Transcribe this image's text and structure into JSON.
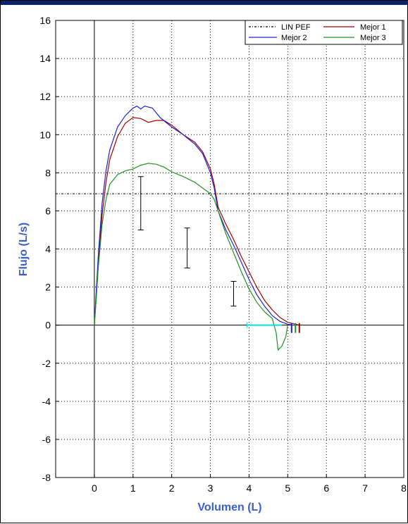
{
  "chart_data": {
    "type": "line",
    "xlabel": "Volumen (L)",
    "ylabel": "Flujo (L/s)",
    "xlim": [
      -1,
      8
    ],
    "ylim": [
      -8,
      16
    ],
    "x_ticks": [
      0,
      1,
      2,
      3,
      4,
      5,
      6,
      7,
      8
    ],
    "y_ticks": [
      -8,
      -6,
      -4,
      -2,
      0,
      2,
      4,
      6,
      8,
      10,
      12,
      14,
      16
    ],
    "grid": true,
    "legend_position": "top-right",
    "colors": {
      "lin_pef": "#000000",
      "mejor1": "#a00000",
      "mejor2": "#2020d0",
      "mejor3": "#209020",
      "cyan": "#00e0e0",
      "axis_label": "#3a5fcd"
    },
    "series": [
      {
        "name": "LIN PEF",
        "style": "dashdot",
        "color": "#000000",
        "points": [
          [
            -1,
            6.9
          ],
          [
            8,
            6.9
          ]
        ]
      },
      {
        "name": "Mejor 1",
        "color": "#a00000",
        "points": [
          [
            0,
            0
          ],
          [
            0.05,
            1.5
          ],
          [
            0.1,
            3.2
          ],
          [
            0.2,
            5.8
          ],
          [
            0.3,
            7.5
          ],
          [
            0.4,
            8.7
          ],
          [
            0.6,
            9.9
          ],
          [
            0.8,
            10.6
          ],
          [
            1.0,
            10.9
          ],
          [
            1.2,
            10.85
          ],
          [
            1.4,
            10.65
          ],
          [
            1.6,
            10.75
          ],
          [
            1.8,
            10.75
          ],
          [
            2.0,
            10.5
          ],
          [
            2.3,
            10.0
          ],
          [
            2.6,
            9.6
          ],
          [
            2.8,
            9.1
          ],
          [
            3.0,
            8.2
          ],
          [
            3.1,
            7.4
          ],
          [
            3.2,
            6.2
          ],
          [
            3.4,
            5.3
          ],
          [
            3.6,
            4.5
          ],
          [
            3.8,
            3.6
          ],
          [
            4.0,
            2.8
          ],
          [
            4.2,
            2.0
          ],
          [
            4.4,
            1.3
          ],
          [
            4.6,
            0.8
          ],
          [
            4.8,
            0.4
          ],
          [
            5.0,
            0.15
          ],
          [
            5.2,
            0.05
          ],
          [
            5.3,
            0
          ]
        ]
      },
      {
        "name": "Mejor 2",
        "color": "#2020d0",
        "points": [
          [
            0,
            0
          ],
          [
            0.05,
            1.8
          ],
          [
            0.1,
            3.6
          ],
          [
            0.2,
            6.4
          ],
          [
            0.3,
            8.1
          ],
          [
            0.4,
            9.2
          ],
          [
            0.6,
            10.4
          ],
          [
            0.8,
            11.0
          ],
          [
            1.0,
            11.4
          ],
          [
            1.1,
            11.5
          ],
          [
            1.2,
            11.35
          ],
          [
            1.3,
            11.5
          ],
          [
            1.5,
            11.4
          ],
          [
            1.7,
            10.9
          ],
          [
            2.0,
            10.4
          ],
          [
            2.3,
            10.0
          ],
          [
            2.6,
            9.5
          ],
          [
            2.8,
            9.0
          ],
          [
            3.0,
            8.0
          ],
          [
            3.1,
            7.2
          ],
          [
            3.2,
            6.0
          ],
          [
            3.4,
            5.0
          ],
          [
            3.6,
            4.2
          ],
          [
            3.8,
            3.3
          ],
          [
            4.0,
            2.4
          ],
          [
            4.2,
            1.6
          ],
          [
            4.4,
            1.0
          ],
          [
            4.6,
            0.5
          ],
          [
            4.8,
            0.2
          ],
          [
            5.0,
            0.05
          ],
          [
            5.15,
            0
          ]
        ]
      },
      {
        "name": "Mejor 3",
        "color": "#209020",
        "points": [
          [
            0,
            0
          ],
          [
            0.05,
            1.4
          ],
          [
            0.1,
            3.0
          ],
          [
            0.2,
            5.3
          ],
          [
            0.3,
            6.6
          ],
          [
            0.4,
            7.4
          ],
          [
            0.6,
            7.9
          ],
          [
            0.8,
            8.1
          ],
          [
            1.0,
            8.2
          ],
          [
            1.2,
            8.4
          ],
          [
            1.4,
            8.5
          ],
          [
            1.6,
            8.45
          ],
          [
            1.8,
            8.3
          ],
          [
            2.0,
            8.05
          ],
          [
            2.3,
            7.8
          ],
          [
            2.6,
            7.5
          ],
          [
            2.8,
            7.2
          ],
          [
            3.0,
            6.9
          ],
          [
            3.1,
            6.6
          ],
          [
            3.2,
            6.0
          ],
          [
            3.4,
            4.8
          ],
          [
            3.6,
            3.8
          ],
          [
            3.8,
            2.8
          ],
          [
            4.0,
            1.9
          ],
          [
            4.2,
            1.2
          ],
          [
            4.4,
            0.7
          ],
          [
            4.6,
            0.35
          ],
          [
            4.7,
            -0.4
          ],
          [
            4.75,
            -1.3
          ],
          [
            4.85,
            -1.1
          ],
          [
            4.95,
            -0.6
          ],
          [
            5.0,
            0
          ]
        ]
      }
    ],
    "error_bars": [
      {
        "x": 1.2,
        "low": 5.0,
        "high": 7.8
      },
      {
        "x": 2.4,
        "low": 3.0,
        "high": 5.1
      },
      {
        "x": 3.6,
        "low": 1.0,
        "high": 2.3
      }
    ],
    "cyan_marker": {
      "from": 3.95,
      "to": 4.85,
      "y": 0
    },
    "end_markers": [
      {
        "x": 5.1,
        "color": "#2020d0"
      },
      {
        "x": 5.2,
        "color": "#209020"
      },
      {
        "x": 5.3,
        "color": "#a00000"
      }
    ]
  }
}
